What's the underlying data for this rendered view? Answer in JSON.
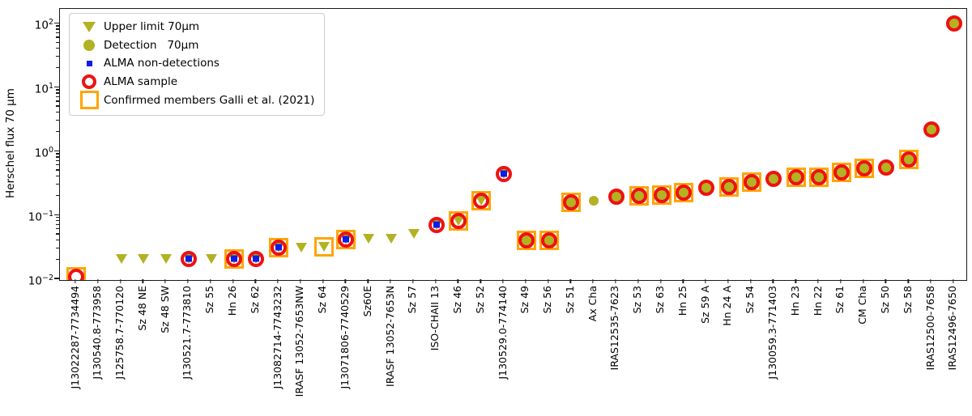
{
  "figure": {
    "ylabel": "Herschel flux 70 μm"
  },
  "colors": {
    "olive": "#b2b222",
    "red": "#ee1111",
    "blue": "#0b1de8",
    "orange": "#ffa502",
    "axis": "#1a1a1a"
  },
  "legend": {
    "items": [
      {
        "marker": "upper-limit",
        "label": "Upper limit 70μm"
      },
      {
        "marker": "detection",
        "label": "Detection   70μm"
      },
      {
        "marker": "alma-non-detection",
        "label": "ALMA non-detections"
      },
      {
        "marker": "alma-sample",
        "label": "ALMA sample"
      },
      {
        "marker": "confirmed-member",
        "label": "Confirmed members Galli et al. (2021)"
      }
    ]
  },
  "chart_data": {
    "type": "scatter",
    "title": "",
    "xlabel": "",
    "ylabel": "Herschel flux 70 μm",
    "yscale": "log",
    "ylim": [
      0.01,
      170
    ],
    "y_tick_exponents": [
      2,
      1,
      0,
      -1,
      -2
    ],
    "x_tick_rotation": 90,
    "grid": false,
    "legend_position": "upper left",
    "marker_legend": {
      "upper_limit": "olive downward triangle",
      "detection": "olive filled circle",
      "alma_non_detection": "blue small square",
      "alma_sample": "red open circle",
      "confirmed_member": "orange open square"
    },
    "points": [
      {
        "name": "J13022287-7734494",
        "flux": 0.011,
        "herschel": null,
        "alma_non_detection": false,
        "alma_sample": true,
        "confirmed_member": true
      },
      {
        "name": "J130540.8-773958",
        "flux": null,
        "herschel": null,
        "alma_non_detection": false,
        "alma_sample": false,
        "confirmed_member": false
      },
      {
        "name": "J125758.7-770120",
        "flux": 0.021,
        "herschel": "upper_limit",
        "alma_non_detection": false,
        "alma_sample": false,
        "confirmed_member": false
      },
      {
        "name": "Sz 48 NE",
        "flux": 0.021,
        "herschel": "upper_limit",
        "alma_non_detection": false,
        "alma_sample": false,
        "confirmed_member": false
      },
      {
        "name": "Sz 48 SW",
        "flux": 0.021,
        "herschel": "upper_limit",
        "alma_non_detection": false,
        "alma_sample": false,
        "confirmed_member": false
      },
      {
        "name": "J130521.7-773810",
        "flux": 0.021,
        "herschel": "upper_limit",
        "alma_non_detection": true,
        "alma_sample": true,
        "confirmed_member": false
      },
      {
        "name": "Sz 55",
        "flux": 0.021,
        "herschel": "upper_limit",
        "alma_non_detection": false,
        "alma_sample": false,
        "confirmed_member": false
      },
      {
        "name": "Hn 26",
        "flux": 0.021,
        "herschel": "upper_limit",
        "alma_non_detection": true,
        "alma_sample": true,
        "confirmed_member": true
      },
      {
        "name": "Sz 62",
        "flux": 0.021,
        "herschel": "upper_limit",
        "alma_non_detection": true,
        "alma_sample": true,
        "confirmed_member": false
      },
      {
        "name": "J13082714-7743232",
        "flux": 0.031,
        "herschel": "upper_limit",
        "alma_non_detection": true,
        "alma_sample": true,
        "confirmed_member": true
      },
      {
        "name": "IRASF 13052-7653NW",
        "flux": 0.031,
        "herschel": "upper_limit",
        "alma_non_detection": false,
        "alma_sample": false,
        "confirmed_member": false
      },
      {
        "name": "Sz 64",
        "flux": 0.032,
        "herschel": "upper_limit",
        "alma_non_detection": false,
        "alma_sample": false,
        "confirmed_member": true
      },
      {
        "name": "J13071806-7740529",
        "flux": 0.042,
        "herschel": "upper_limit",
        "alma_non_detection": true,
        "alma_sample": true,
        "confirmed_member": true
      },
      {
        "name": "Sz60E",
        "flux": 0.043,
        "herschel": "upper_limit",
        "alma_non_detection": false,
        "alma_sample": false,
        "confirmed_member": false
      },
      {
        "name": "IRASF 13052-7653N",
        "flux": 0.043,
        "herschel": "upper_limit",
        "alma_non_detection": false,
        "alma_sample": false,
        "confirmed_member": false
      },
      {
        "name": "Sz 57",
        "flux": 0.052,
        "herschel": "upper_limit",
        "alma_non_detection": false,
        "alma_sample": false,
        "confirmed_member": false
      },
      {
        "name": "ISO-CHAII 13",
        "flux": 0.07,
        "herschel": "upper_limit",
        "alma_non_detection": true,
        "alma_sample": true,
        "confirmed_member": false
      },
      {
        "name": "Sz 46",
        "flux": 0.082,
        "herschel": "upper_limit",
        "alma_non_detection": false,
        "alma_sample": true,
        "confirmed_member": true
      },
      {
        "name": "Sz 52",
        "flux": 0.17,
        "herschel": "upper_limit",
        "alma_non_detection": false,
        "alma_sample": true,
        "confirmed_member": true
      },
      {
        "name": "J130529.0-774140",
        "flux": 0.44,
        "herschel": "upper_limit",
        "alma_non_detection": true,
        "alma_sample": true,
        "confirmed_member": false
      },
      {
        "name": "Sz 49",
        "flux": 0.041,
        "herschel": "detection",
        "alma_non_detection": false,
        "alma_sample": true,
        "confirmed_member": true
      },
      {
        "name": "Sz 56",
        "flux": 0.041,
        "herschel": "detection",
        "alma_non_detection": false,
        "alma_sample": true,
        "confirmed_member": true
      },
      {
        "name": "Sz 51",
        "flux": 0.16,
        "herschel": "detection",
        "alma_non_detection": false,
        "alma_sample": true,
        "confirmed_member": true
      },
      {
        "name": "Ax Cha",
        "flux": 0.17,
        "herschel": "detection",
        "alma_non_detection": false,
        "alma_sample": false,
        "confirmed_member": false
      },
      {
        "name": "IRAS12535-7623",
        "flux": 0.195,
        "herschel": "detection",
        "alma_non_detection": false,
        "alma_sample": true,
        "confirmed_member": false
      },
      {
        "name": "Sz 53",
        "flux": 0.2,
        "herschel": "detection",
        "alma_non_detection": false,
        "alma_sample": true,
        "confirmed_member": true
      },
      {
        "name": "Sz 63",
        "flux": 0.21,
        "herschel": "detection",
        "alma_non_detection": false,
        "alma_sample": true,
        "confirmed_member": true
      },
      {
        "name": "Hn 25",
        "flux": 0.23,
        "herschel": "detection",
        "alma_non_detection": false,
        "alma_sample": true,
        "confirmed_member": true
      },
      {
        "name": "Sz 59 A",
        "flux": 0.27,
        "herschel": "detection",
        "alma_non_detection": false,
        "alma_sample": true,
        "confirmed_member": false
      },
      {
        "name": "Hn 24 A",
        "flux": 0.28,
        "herschel": "detection",
        "alma_non_detection": false,
        "alma_sample": true,
        "confirmed_member": true
      },
      {
        "name": "Sz 54",
        "flux": 0.33,
        "herschel": "detection",
        "alma_non_detection": false,
        "alma_sample": true,
        "confirmed_member": true
      },
      {
        "name": "J130059.3-771403",
        "flux": 0.37,
        "herschel": "detection",
        "alma_non_detection": false,
        "alma_sample": true,
        "confirmed_member": false
      },
      {
        "name": "Hn 23",
        "flux": 0.4,
        "herschel": "detection",
        "alma_non_detection": false,
        "alma_sample": true,
        "confirmed_member": true
      },
      {
        "name": "Hn 22",
        "flux": 0.4,
        "herschel": "detection",
        "alma_non_detection": false,
        "alma_sample": true,
        "confirmed_member": true
      },
      {
        "name": "Sz 61",
        "flux": 0.47,
        "herschel": "detection",
        "alma_non_detection": false,
        "alma_sample": true,
        "confirmed_member": true
      },
      {
        "name": "CM Cha",
        "flux": 0.55,
        "herschel": "detection",
        "alma_non_detection": false,
        "alma_sample": true,
        "confirmed_member": true
      },
      {
        "name": "Sz 50",
        "flux": 0.56,
        "herschel": "detection",
        "alma_non_detection": false,
        "alma_sample": true,
        "confirmed_member": false
      },
      {
        "name": "Sz 58",
        "flux": 0.75,
        "herschel": "detection",
        "alma_non_detection": false,
        "alma_sample": true,
        "confirmed_member": true
      },
      {
        "name": "IRAS12500-7658",
        "flux": 2.2,
        "herschel": "detection",
        "alma_non_detection": false,
        "alma_sample": true,
        "confirmed_member": false
      },
      {
        "name": "IRAS12496-7650",
        "flux": 100,
        "herschel": "detection",
        "alma_non_detection": false,
        "alma_sample": true,
        "confirmed_member": false
      }
    ]
  }
}
